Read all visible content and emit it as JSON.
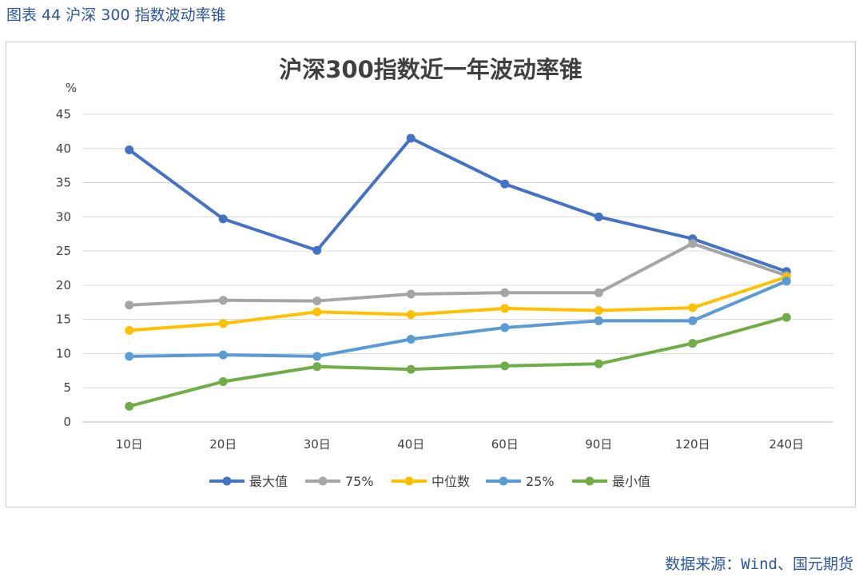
{
  "caption": "图表 44  沪深 300 指数波动率锥",
  "source": "数据来源：Wind、国元期货",
  "colors": {
    "max": "#4472c4",
    "p75": "#a5a5a5",
    "median": "#ffc000",
    "p25": "#5b9bd5",
    "min": "#70ad47",
    "grid": "#d9d9d9"
  },
  "chart_data": {
    "type": "line",
    "title": "沪深300指数近一年波动率锥",
    "ylabel": "%",
    "xlabel": "",
    "ylim": [
      0,
      45
    ],
    "yticks": [
      0,
      5,
      10,
      15,
      20,
      25,
      30,
      35,
      40,
      45
    ],
    "categories": [
      "10日",
      "20日",
      "30日",
      "40日",
      "60日",
      "90日",
      "120日",
      "240日"
    ],
    "legend_position": "bottom",
    "series": [
      {
        "name": "最大值",
        "color_key": "max",
        "values": [
          39.8,
          29.7,
          25.1,
          41.5,
          34.8,
          30.0,
          26.8,
          22.0
        ]
      },
      {
        "name": "75%",
        "color_key": "p75",
        "values": [
          17.1,
          17.8,
          17.7,
          18.7,
          18.9,
          18.9,
          26.1,
          21.4
        ]
      },
      {
        "name": "中位数",
        "color_key": "median",
        "values": [
          13.4,
          14.4,
          16.1,
          15.7,
          16.6,
          16.3,
          16.7,
          21.2
        ]
      },
      {
        "name": "25%",
        "color_key": "p25",
        "values": [
          9.6,
          9.8,
          9.6,
          12.1,
          13.8,
          14.8,
          14.8,
          20.6
        ]
      },
      {
        "name": "最小值",
        "color_key": "min",
        "values": [
          2.3,
          5.9,
          8.1,
          7.7,
          8.2,
          8.5,
          11.5,
          15.3
        ]
      }
    ]
  }
}
